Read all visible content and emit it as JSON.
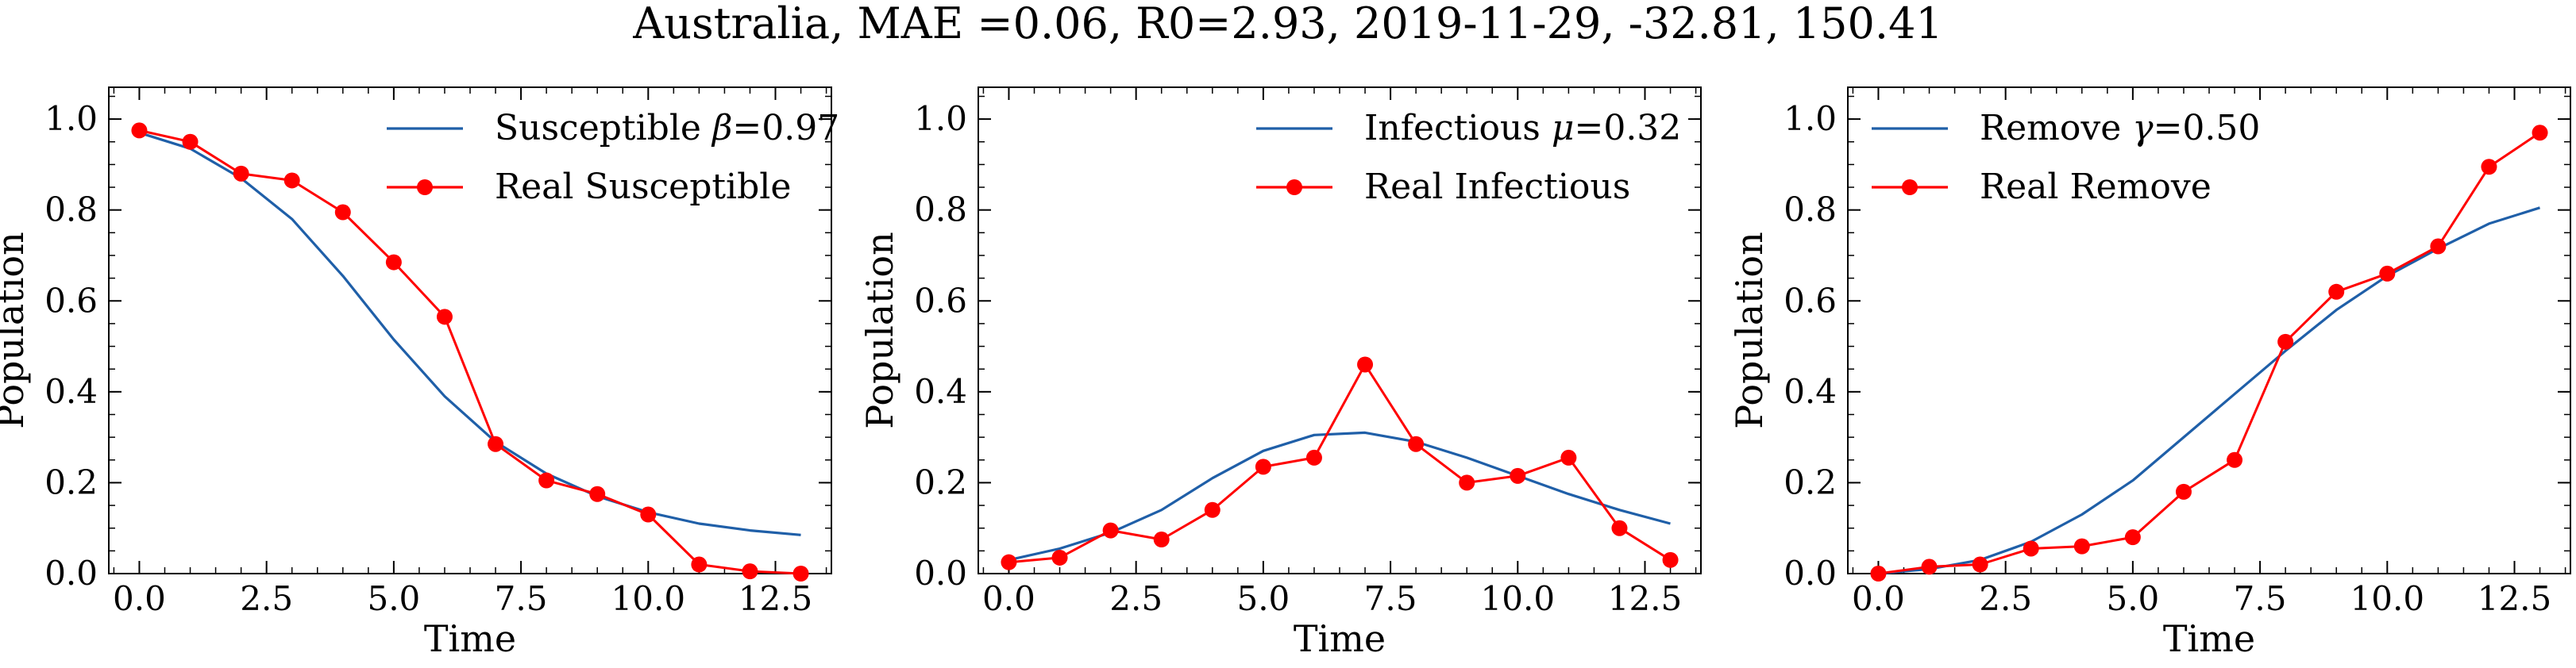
{
  "figure": {
    "title": "Australia, MAE =0.06, R0=2.93, 2019-11-29, -32.81, 150.41"
  },
  "colors": {
    "model": "#1f5fa8",
    "real": "#ff0000",
    "axis": "#000000"
  },
  "chart_data": [
    {
      "type": "line",
      "title": "",
      "xlabel": "Time",
      "ylabel": "Population",
      "xlim": [
        -0.6,
        13.6
      ],
      "ylim": [
        0.0,
        1.07
      ],
      "xticks": [
        0.0,
        2.5,
        5.0,
        7.5,
        10.0,
        12.5
      ],
      "xtick_labels": [
        "0.0",
        "2.5",
        "5.0",
        "7.5",
        "10.0",
        "12.5"
      ],
      "yticks": [
        0.0,
        0.2,
        0.4,
        0.6,
        0.8,
        1.0
      ],
      "ytick_labels": [
        "0.0",
        "0.2",
        "0.4",
        "0.6",
        "0.8",
        "1.0"
      ],
      "legend_position": "top-right",
      "series": [
        {
          "name": "Susceptible β=0.97",
          "legend_prefix": "Susceptible ",
          "legend_symbol": "β",
          "legend_suffix": "=0.97",
          "style": "model",
          "x": [
            0,
            1,
            2,
            3,
            4,
            5,
            6,
            7,
            8,
            9,
            10,
            11,
            12,
            13
          ],
          "values": [
            0.97,
            0.935,
            0.87,
            0.78,
            0.655,
            0.515,
            0.39,
            0.29,
            0.22,
            0.17,
            0.135,
            0.11,
            0.095,
            0.085
          ]
        },
        {
          "name": "Real Susceptible",
          "legend_prefix": "Real Susceptible",
          "legend_symbol": "",
          "legend_suffix": "",
          "style": "real",
          "x": [
            0,
            1,
            2,
            3,
            4,
            5,
            6,
            7,
            8,
            9,
            10,
            11,
            12,
            13
          ],
          "values": [
            0.975,
            0.95,
            0.88,
            0.865,
            0.795,
            0.685,
            0.565,
            0.285,
            0.205,
            0.175,
            0.13,
            0.02,
            0.005,
            0.0
          ]
        }
      ]
    },
    {
      "type": "line",
      "title": "",
      "xlabel": "Time",
      "ylabel": "Population",
      "xlim": [
        -0.6,
        13.6
      ],
      "ylim": [
        0.0,
        1.07
      ],
      "xticks": [
        0.0,
        2.5,
        5.0,
        7.5,
        10.0,
        12.5
      ],
      "xtick_labels": [
        "0.0",
        "2.5",
        "5.0",
        "7.5",
        "10.0",
        "12.5"
      ],
      "yticks": [
        0.0,
        0.2,
        0.4,
        0.6,
        0.8,
        1.0
      ],
      "ytick_labels": [
        "0.0",
        "0.2",
        "0.4",
        "0.6",
        "0.8",
        "1.0"
      ],
      "legend_position": "top-right",
      "series": [
        {
          "name": "Infectious μ=0.32",
          "legend_prefix": "Infectious ",
          "legend_symbol": "μ",
          "legend_suffix": "=0.32",
          "style": "model",
          "x": [
            0,
            1,
            2,
            3,
            4,
            5,
            6,
            7,
            8,
            9,
            10,
            11,
            12,
            13
          ],
          "values": [
            0.03,
            0.055,
            0.09,
            0.14,
            0.21,
            0.27,
            0.305,
            0.31,
            0.29,
            0.255,
            0.215,
            0.175,
            0.14,
            0.11
          ]
        },
        {
          "name": "Real Infectious",
          "legend_prefix": "Real Infectious",
          "legend_symbol": "",
          "legend_suffix": "",
          "style": "real",
          "x": [
            0,
            1,
            2,
            3,
            4,
            5,
            6,
            7,
            8,
            9,
            10,
            11,
            12,
            13
          ],
          "values": [
            0.025,
            0.035,
            0.095,
            0.075,
            0.14,
            0.235,
            0.255,
            0.46,
            0.285,
            0.2,
            0.215,
            0.255,
            0.1,
            0.03
          ]
        }
      ]
    },
    {
      "type": "line",
      "title": "",
      "xlabel": "Time",
      "ylabel": "Population",
      "xlim": [
        -0.6,
        13.6
      ],
      "ylim": [
        0.0,
        1.07
      ],
      "xticks": [
        0.0,
        2.5,
        5.0,
        7.5,
        10.0,
        12.5
      ],
      "xtick_labels": [
        "0.0",
        "2.5",
        "5.0",
        "7.5",
        "10.0",
        "12.5"
      ],
      "yticks": [
        0.0,
        0.2,
        0.4,
        0.6,
        0.8,
        1.0
      ],
      "ytick_labels": [
        "0.0",
        "0.2",
        "0.4",
        "0.6",
        "0.8",
        "1.0"
      ],
      "legend_position": "top-left",
      "series": [
        {
          "name": "Remove γ=0.50",
          "legend_prefix": "Remove ",
          "legend_symbol": "γ",
          "legend_suffix": "=0.50",
          "style": "model",
          "x": [
            0,
            1,
            2,
            3,
            4,
            5,
            6,
            7,
            8,
            9,
            10,
            11,
            12,
            13
          ],
          "values": [
            0.0,
            0.01,
            0.03,
            0.07,
            0.13,
            0.205,
            0.3,
            0.395,
            0.49,
            0.58,
            0.655,
            0.715,
            0.77,
            0.805
          ]
        },
        {
          "name": "Real Remove",
          "legend_prefix": "Real Remove",
          "legend_symbol": "",
          "legend_suffix": "",
          "style": "real",
          "x": [
            0,
            1,
            2,
            3,
            4,
            5,
            6,
            7,
            8,
            9,
            10,
            11,
            12,
            13
          ],
          "values": [
            0.0,
            0.015,
            0.02,
            0.055,
            0.06,
            0.08,
            0.18,
            0.25,
            0.51,
            0.62,
            0.66,
            0.72,
            0.895,
            0.97
          ]
        }
      ]
    }
  ]
}
